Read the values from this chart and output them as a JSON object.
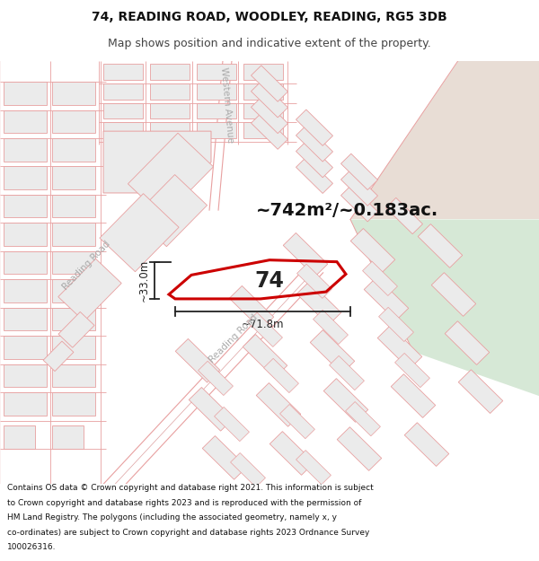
{
  "title_line1": "74, READING ROAD, WOODLEY, READING, RG5 3DB",
  "title_line2": "Map shows position and indicative extent of the property.",
  "footer_lines": [
    "Contains OS data © Crown copyright and database right 2021. This information is subject",
    "to Crown copyright and database rights 2023 and is reproduced with the permission of",
    "HM Land Registry. The polygons (including the associated geometry, namely x, y",
    "co-ordinates) are subject to Crown copyright and database rights 2023 Ordnance Survey",
    "100026316."
  ],
  "area_text": "~742m²/~0.183ac.",
  "dim_width": "~71.8m",
  "dim_height": "~33.0m",
  "property_number": "74",
  "map_bg": "#f7f4f2",
  "bldg_fill": "#ebebeb",
  "bldg_edge": "#e8a0a0",
  "road_light": "#e8a0a0",
  "road_thin": "#e0a0a0",
  "plot_color": "#cc0000",
  "green_color": "#d6e8d6",
  "tan_color": "#e8ddd5",
  "dim_color": "#222222",
  "text_color": "#111111",
  "label_color": "#aaaaaa",
  "title_fs": 10,
  "sub_fs": 9,
  "footer_fs": 6.5,
  "area_fs": 14,
  "dim_fs": 8.5,
  "num_fs": 17,
  "road_label_fs": 7.5,
  "plot_lw": 2.2,
  "dim_lw": 1.3
}
